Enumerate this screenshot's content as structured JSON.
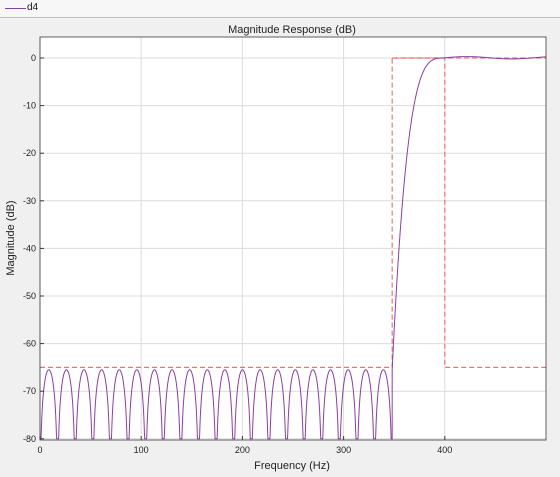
{
  "legend": {
    "label": "d4",
    "color": "#8b3fa0"
  },
  "chart_data": {
    "type": "line",
    "title": "Magnitude Response (dB)",
    "xlabel": "Frequency (Hz)",
    "ylabel": "Magnitude (dB)",
    "xlim": [
      0,
      500
    ],
    "ylim": [
      -80,
      5
    ],
    "xticks": [
      0,
      100,
      200,
      300,
      400
    ],
    "yticks": [
      0,
      -10,
      -20,
      -30,
      -40,
      -50,
      -60,
      -70,
      -80
    ],
    "grid": true,
    "legend_position": "top-left",
    "colors": {
      "response": "#8b3fa0",
      "mask": "#e8747a",
      "grid": "#dcdcdc"
    },
    "series": [
      {
        "name": "d4",
        "description_of_shape": "equiripple stopband 0-348 Hz with peaks near -65.5 dB and nulls below -80 dB; transition 348-400 Hz; passband ~0 dB above 400 Hz",
        "stopband_edge": 348,
        "passband_edge": 400,
        "stopband_peak_db": -65.5,
        "stopband_null_count": 20,
        "passband_ripple_db": 0.3
      }
    ],
    "mask": [
      {
        "x": [
          0,
          348,
          348,
          400,
          400,
          500
        ],
        "y": [
          -65,
          -65,
          0,
          0,
          -65,
          -65
        ]
      },
      {
        "x": [
          348,
          500
        ],
        "y": [
          0,
          0
        ]
      }
    ]
  }
}
